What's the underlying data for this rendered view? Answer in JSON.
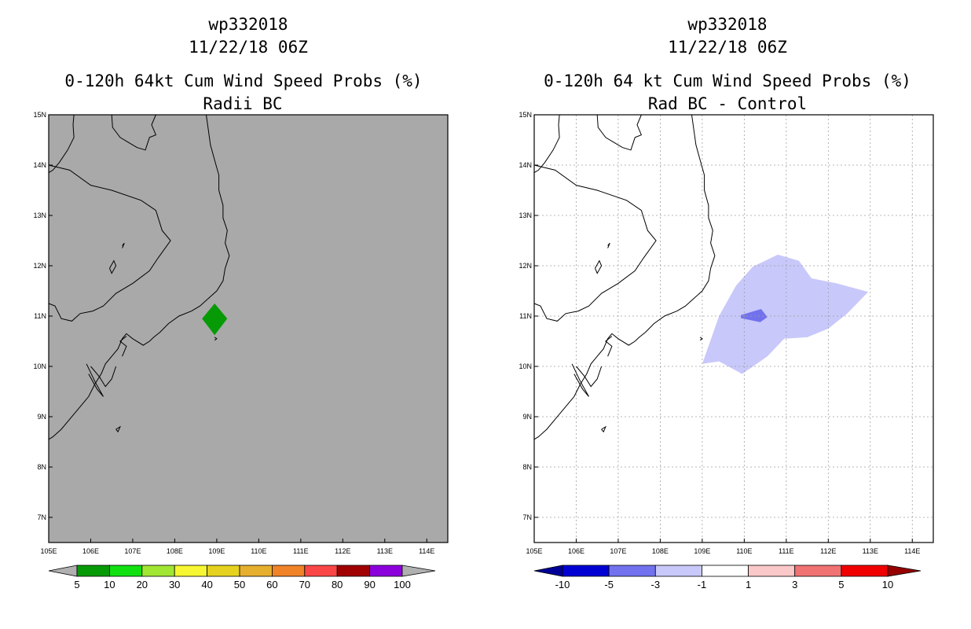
{
  "chart_data": [
    {
      "type": "heatmap",
      "id": "left",
      "title_lines": [
        "wp332018",
        "11/22/18 06Z",
        "0-120h 64kt Cum Wind Speed Probs (%)",
        "Radii BC"
      ],
      "xlim": [
        105,
        114.5
      ],
      "ylim": [
        6.5,
        15
      ],
      "x_ticks": [
        105,
        106,
        107,
        108,
        109,
        110,
        111,
        112,
        113,
        114
      ],
      "x_tick_labels": [
        "105E",
        "106E",
        "107E",
        "108E",
        "109E",
        "110E",
        "111E",
        "112E",
        "113E",
        "114E"
      ],
      "y_ticks": [
        7,
        8,
        9,
        10,
        11,
        12,
        13,
        14,
        15
      ],
      "y_tick_labels": [
        "7N",
        "8N",
        "9N",
        "10N",
        "11N",
        "12N",
        "13N",
        "14N",
        "15N"
      ],
      "grid": false,
      "background": "#a9a9a9",
      "fill_regions": [
        {
          "color": "#079a07",
          "points": [
            [
              108.95,
              11.25
            ],
            [
              109.25,
              10.95
            ],
            [
              108.95,
              10.62
            ],
            [
              108.65,
              10.95
            ]
          ]
        }
      ],
      "colorbar": {
        "labels": [
          "5",
          "10",
          "20",
          "30",
          "40",
          "50",
          "60",
          "70",
          "80",
          "90",
          "100"
        ],
        "colors": [
          "#079a07",
          "#10e010",
          "#a0e632",
          "#f6f632",
          "#e6d21e",
          "#e6af2d",
          "#f08228",
          "#fa4646",
          "#a00000",
          "#8c00dc"
        ],
        "end_low": "#b0b0b0",
        "end_high": "#b0b0b0"
      }
    },
    {
      "type": "heatmap",
      "id": "right",
      "title_lines": [
        "wp332018",
        "11/22/18 06Z",
        "0-120h 64 kt Cum Wind Speed Probs (%)",
        "Rad BC - Control"
      ],
      "xlim": [
        105,
        114.5
      ],
      "ylim": [
        6.5,
        15
      ],
      "x_ticks": [
        105,
        106,
        107,
        108,
        109,
        110,
        111,
        112,
        113,
        114
      ],
      "x_tick_labels": [
        "105E",
        "106E",
        "107E",
        "108E",
        "109E",
        "110E",
        "111E",
        "112E",
        "113E",
        "114E"
      ],
      "y_ticks": [
        7,
        8,
        9,
        10,
        11,
        12,
        13,
        14,
        15
      ],
      "y_tick_labels": [
        "7N",
        "8N",
        "9N",
        "10N",
        "11N",
        "12N",
        "13N",
        "14N",
        "15N"
      ],
      "grid": true,
      "background": "#ffffff",
      "fill_regions": [
        {
          "color": "#c8c8fa",
          "points": [
            [
              109.0,
              10.05
            ],
            [
              109.4,
              11.0
            ],
            [
              109.8,
              11.6
            ],
            [
              110.2,
              11.98
            ],
            [
              110.8,
              12.22
            ],
            [
              111.3,
              12.1
            ],
            [
              111.6,
              11.75
            ],
            [
              112.2,
              11.65
            ],
            [
              112.95,
              11.48
            ],
            [
              112.45,
              11.05
            ],
            [
              112.0,
              10.75
            ],
            [
              111.5,
              10.58
            ],
            [
              110.95,
              10.55
            ],
            [
              110.55,
              10.2
            ],
            [
              109.95,
              9.85
            ],
            [
              109.4,
              10.1
            ]
          ]
        },
        {
          "color": "#7272ee",
          "points": [
            [
              109.92,
              11.02
            ],
            [
              110.4,
              11.14
            ],
            [
              110.55,
              10.98
            ],
            [
              110.38,
              10.88
            ],
            [
              109.92,
              10.96
            ]
          ]
        }
      ],
      "colorbar": {
        "labels": [
          "-10",
          "-5",
          "-3",
          "-1",
          "1",
          "3",
          "5",
          "10"
        ],
        "colors": [
          "#0000d2",
          "#7272ee",
          "#c8c8fa",
          "#ffffff",
          "#fac8c8",
          "#f07272",
          "#f00000"
        ],
        "end_low": "#000096",
        "end_high": "#960000"
      }
    }
  ]
}
